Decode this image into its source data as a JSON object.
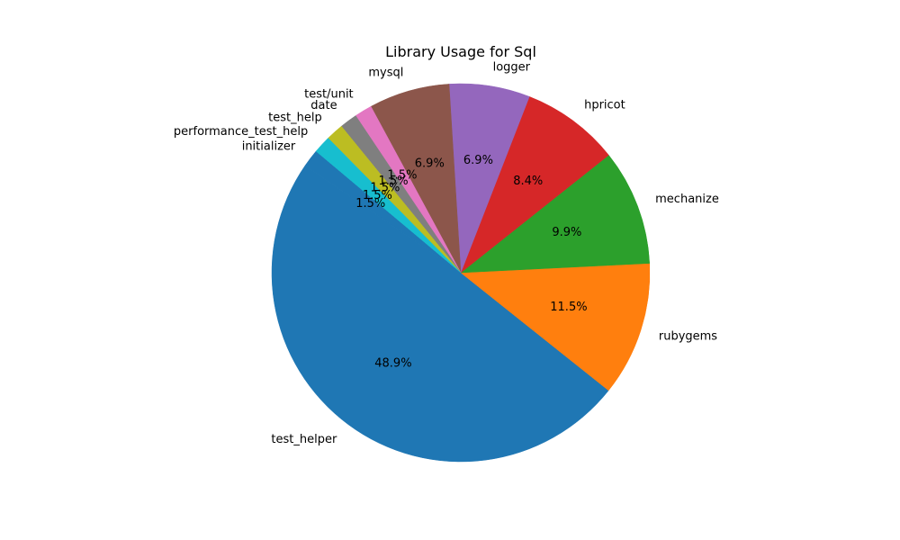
{
  "chart_data": {
    "type": "pie",
    "title": "Library Usage for Sql",
    "start_angle_deg": 140,
    "direction": "counterclockwise",
    "slices": [
      {
        "label": "initializer",
        "value": 1.5,
        "pct_label": "1.5%",
        "color": "#1f77b4"
      },
      {
        "label": "test_helper",
        "value": 48.9,
        "pct_label": "48.9%",
        "color": "#1f77b4"
      },
      {
        "label": "rubygems",
        "value": 11.5,
        "pct_label": "11.5%",
        "color": "#ff7f0e"
      },
      {
        "label": "mechanize",
        "value": 9.9,
        "pct_label": "9.9%",
        "color": "#2ca02c"
      },
      {
        "label": "hpricot",
        "value": 8.4,
        "pct_label": "8.4%",
        "color": "#d62728"
      },
      {
        "label": "logger",
        "value": 6.9,
        "pct_label": "6.9%",
        "color": "#9467bd"
      },
      {
        "label": "mysql",
        "value": 6.9,
        "pct_label": "6.9%",
        "color": "#8c564b"
      },
      {
        "label": "test/unit",
        "value": 1.5,
        "pct_label": "1.5%",
        "color": "#e377c2"
      },
      {
        "label": "date",
        "value": 1.5,
        "pct_label": "1.5%",
        "color": "#7f7f7f"
      },
      {
        "label": "test_help",
        "value": 1.5,
        "pct_label": "1.5%",
        "color": "#bcbd22"
      },
      {
        "label": "performance_test_help",
        "value": 1.5,
        "pct_label": "1.5%",
        "color": "#17becf"
      }
    ]
  }
}
